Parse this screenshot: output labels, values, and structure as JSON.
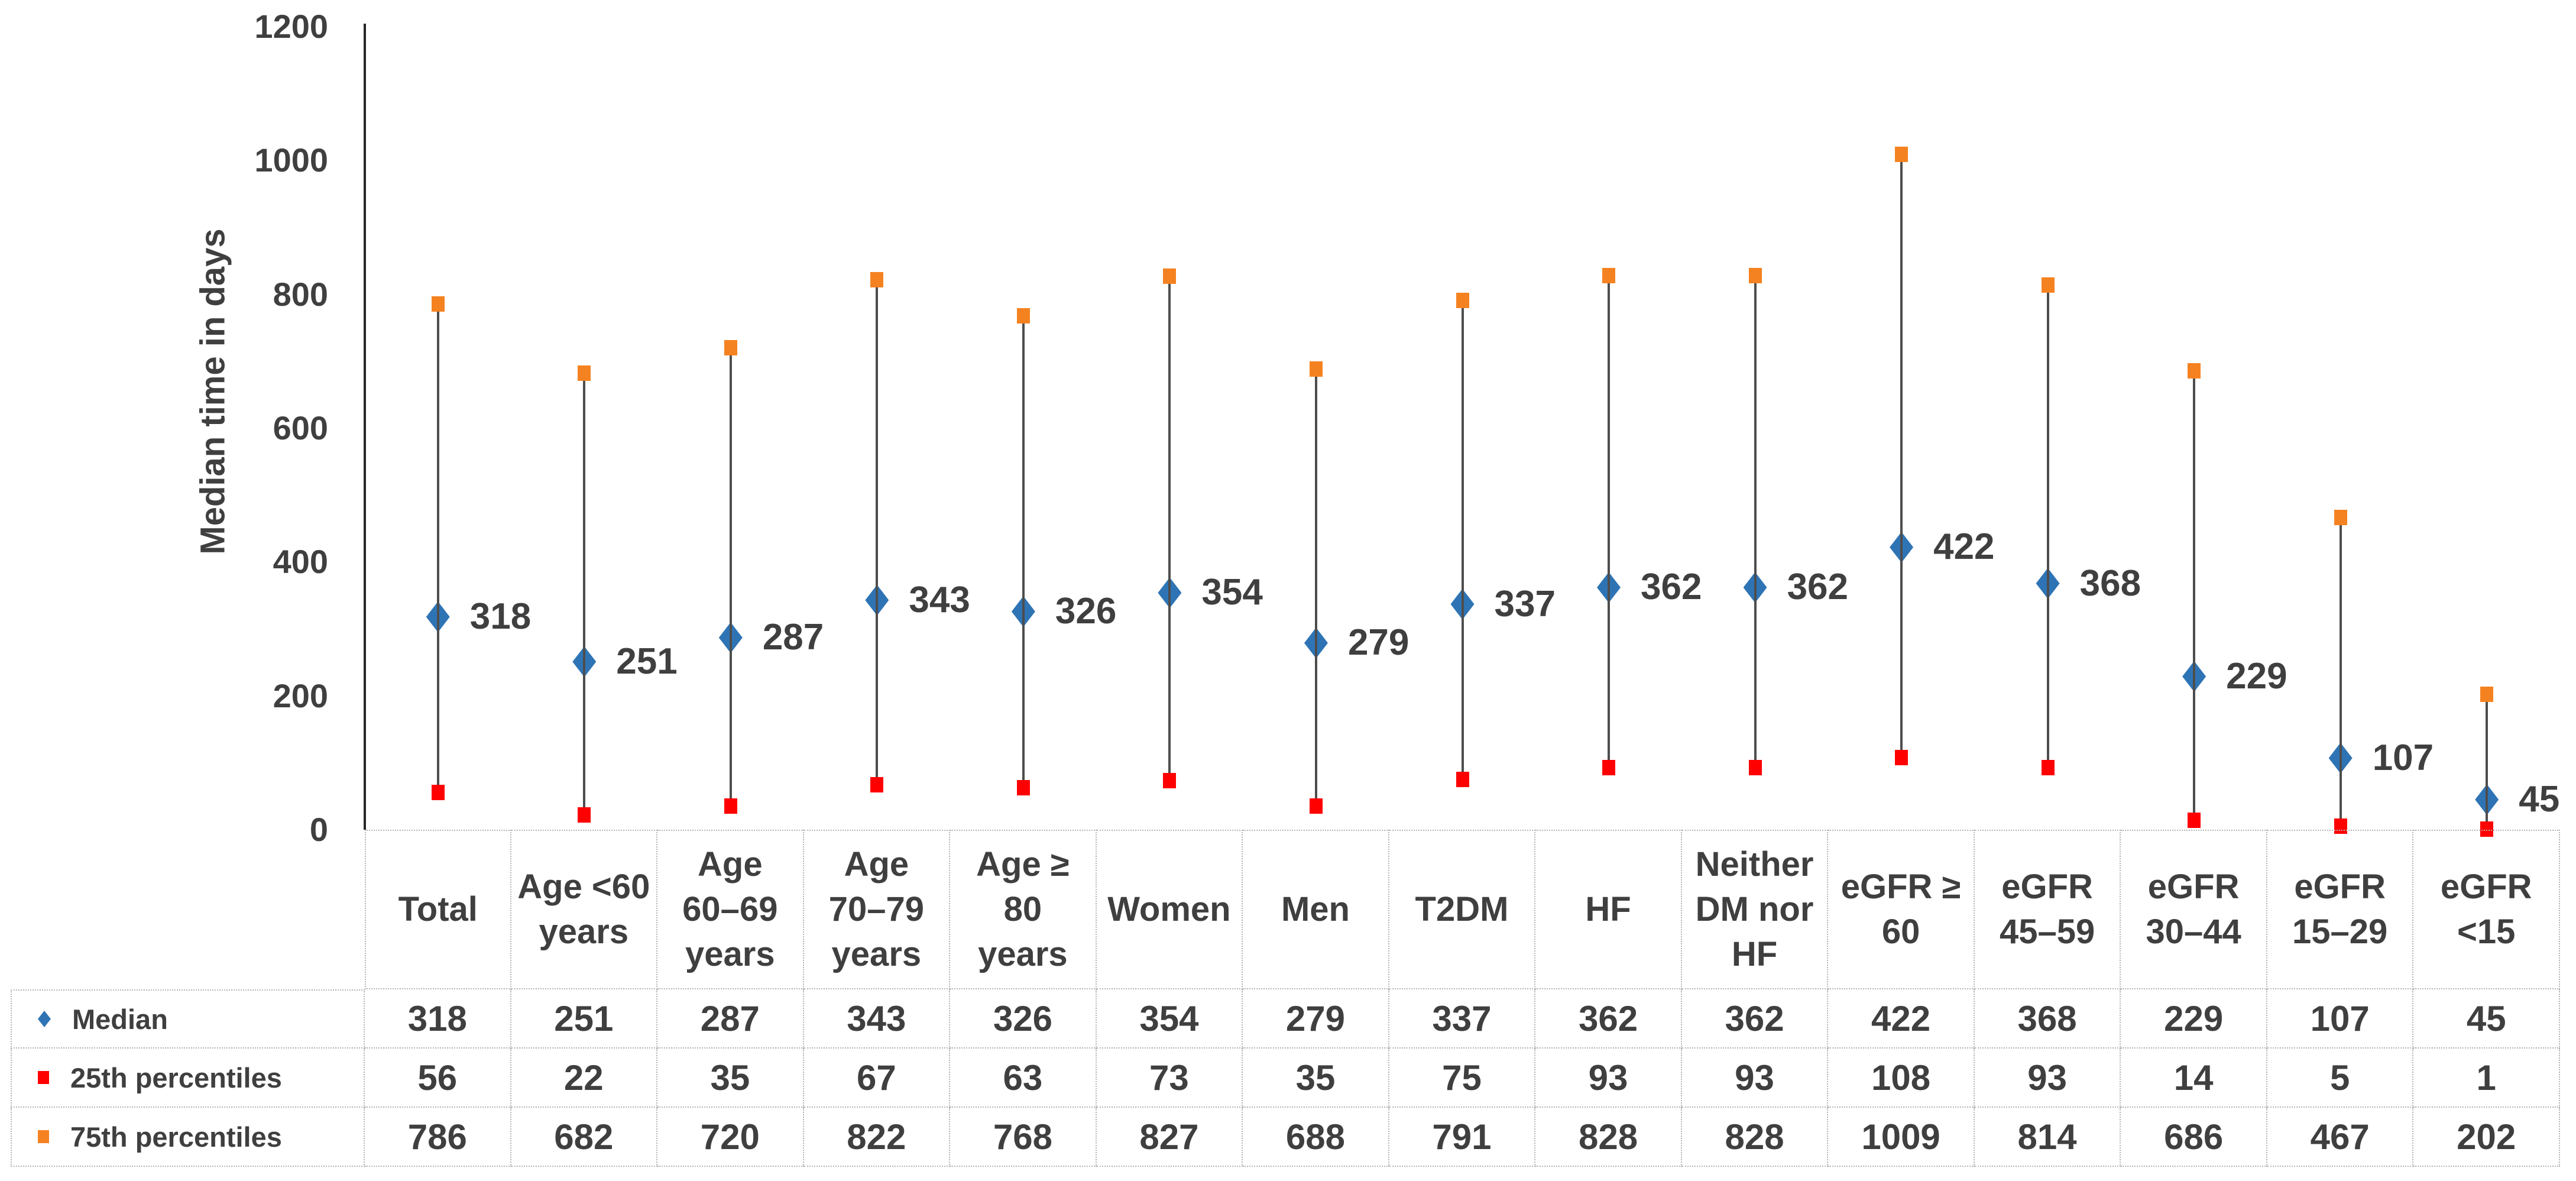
{
  "colors": {
    "median_blue": "#2E74B5",
    "p25_red": "#FE0000",
    "p75_orange": "#F58220",
    "error_line": "#4D4D4D",
    "axis": "#262626",
    "text": "#3F3F3F",
    "table_border": "#B3B3B3",
    "background": "#FFFFFF"
  },
  "chart_data": {
    "type": "scatter",
    "subtype": "median-with-percentile-range-bars",
    "title": "",
    "xlabel": "",
    "ylabel": "Median time in days",
    "ylim": [
      0,
      1200
    ],
    "yticks": [
      0,
      200,
      400,
      600,
      800,
      1000,
      1200
    ],
    "grid": false,
    "legend_position": "table rows below chart (left column)",
    "categories": [
      "Total",
      "Age <60 years",
      "Age 60–69 years",
      "Age 70–79 years",
      "Age ≥ 80 years",
      "Women",
      "Men",
      "T2DM",
      "HF",
      "Neither DM nor HF",
      "eGFR ≥ 60",
      "eGFR 45–59",
      "eGFR 30–44",
      "eGFR 15–29",
      "eGFR <15"
    ],
    "category_display": [
      "Total",
      "Age <60\nyears",
      "Age\n60–69\nyears",
      "Age\n70–79\nyears",
      "Age ≥\n80\nyears",
      "Women",
      "Men",
      "T2DM",
      "HF",
      "Neither\nDM nor\nHF",
      "eGFR ≥\n60",
      "eGFR\n45–59",
      "eGFR\n30–44",
      "eGFR\n15–29",
      "eGFR\n<15"
    ],
    "series": [
      {
        "name": "Median",
        "marker": "diamond",
        "color": "#2E74B5",
        "data_labels": true,
        "values": [
          318,
          251,
          287,
          343,
          326,
          354,
          279,
          337,
          362,
          362,
          422,
          368,
          229,
          107,
          45
        ]
      },
      {
        "name": "25th percentiles",
        "marker": "square",
        "color": "#FE0000",
        "data_labels": false,
        "values": [
          56,
          22,
          35,
          67,
          63,
          73,
          35,
          75,
          93,
          93,
          108,
          93,
          14,
          5,
          1
        ]
      },
      {
        "name": "75th percentiles",
        "marker": "square",
        "color": "#F58220",
        "data_labels": false,
        "values": [
          786,
          682,
          720,
          822,
          768,
          827,
          688,
          791,
          828,
          828,
          1009,
          814,
          686,
          467,
          202
        ]
      }
    ]
  }
}
